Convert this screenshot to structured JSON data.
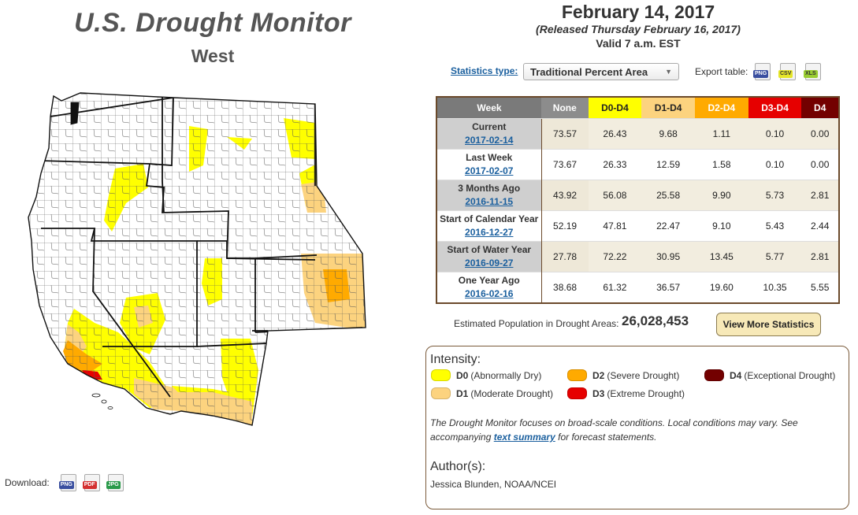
{
  "header": {
    "title": "U.S. Drought Monitor",
    "region": "West",
    "date": "February 14, 2017",
    "released": "(Released Thursday February 16, 2017)",
    "valid": "Valid 7 a.m. EST"
  },
  "download": {
    "label": "Download:",
    "formats": [
      "PNG",
      "PDF",
      "JPG"
    ]
  },
  "statistics": {
    "type_label": "Statistics type:",
    "type_value": "Traditional Percent Area",
    "export_label": "Export table:",
    "export_formats": [
      "PNG",
      "CSV",
      "XLS"
    ]
  },
  "table": {
    "columns": [
      "Week",
      "None",
      "D0-D4",
      "D1-D4",
      "D2-D4",
      "D3-D4",
      "D4"
    ],
    "rows": [
      {
        "label": "Current",
        "date": "2017-02-14",
        "values": [
          "73.57",
          "26.43",
          "9.68",
          "1.11",
          "0.10",
          "0.00"
        ]
      },
      {
        "label": "Last Week",
        "date": "2017-02-07",
        "values": [
          "73.67",
          "26.33",
          "12.59",
          "1.58",
          "0.10",
          "0.00"
        ]
      },
      {
        "label": "3 Months Ago",
        "date": "2016-11-15",
        "values": [
          "43.92",
          "56.08",
          "25.58",
          "9.90",
          "5.73",
          "2.81"
        ]
      },
      {
        "label": "Start of Calendar Year",
        "date": "2016-12-27",
        "values": [
          "52.19",
          "47.81",
          "22.47",
          "9.10",
          "5.43",
          "2.44"
        ]
      },
      {
        "label": "Start of Water Year",
        "date": "2016-09-27",
        "values": [
          "27.78",
          "72.22",
          "30.95",
          "13.45",
          "5.77",
          "2.81"
        ]
      },
      {
        "label": "One Year Ago",
        "date": "2016-02-16",
        "values": [
          "38.68",
          "61.32",
          "36.57",
          "19.60",
          "10.35",
          "5.55"
        ]
      }
    ]
  },
  "population": {
    "label": "Estimated Population in Drought Areas:",
    "value": "26,028,453"
  },
  "more_button": "View More Statistics",
  "legend": {
    "title": "Intensity:",
    "items": [
      {
        "code": "D0",
        "desc": "(Abnormally Dry)",
        "color": "#ffff00"
      },
      {
        "code": "D1",
        "desc": "(Moderate Drought)",
        "color": "#fcd37f"
      },
      {
        "code": "D2",
        "desc": "(Severe Drought)",
        "color": "#ffaa00"
      },
      {
        "code": "D3",
        "desc": "(Extreme Drought)",
        "color": "#e60000"
      },
      {
        "code": "D4",
        "desc": "(Exceptional Drought)",
        "color": "#730000"
      }
    ]
  },
  "disclaimer": {
    "text1": "The Drought Monitor focuses on broad-scale conditions. Local conditions may vary. See accompanying",
    "link": "text summary",
    "text2": "for forecast statements."
  },
  "author": {
    "title": "Author(s):",
    "name": "Jessica Blunden, NOAA/NCEI"
  },
  "map": {
    "state_fill": "#ffffff",
    "border_color": "#111111",
    "county_color": "#555555"
  }
}
